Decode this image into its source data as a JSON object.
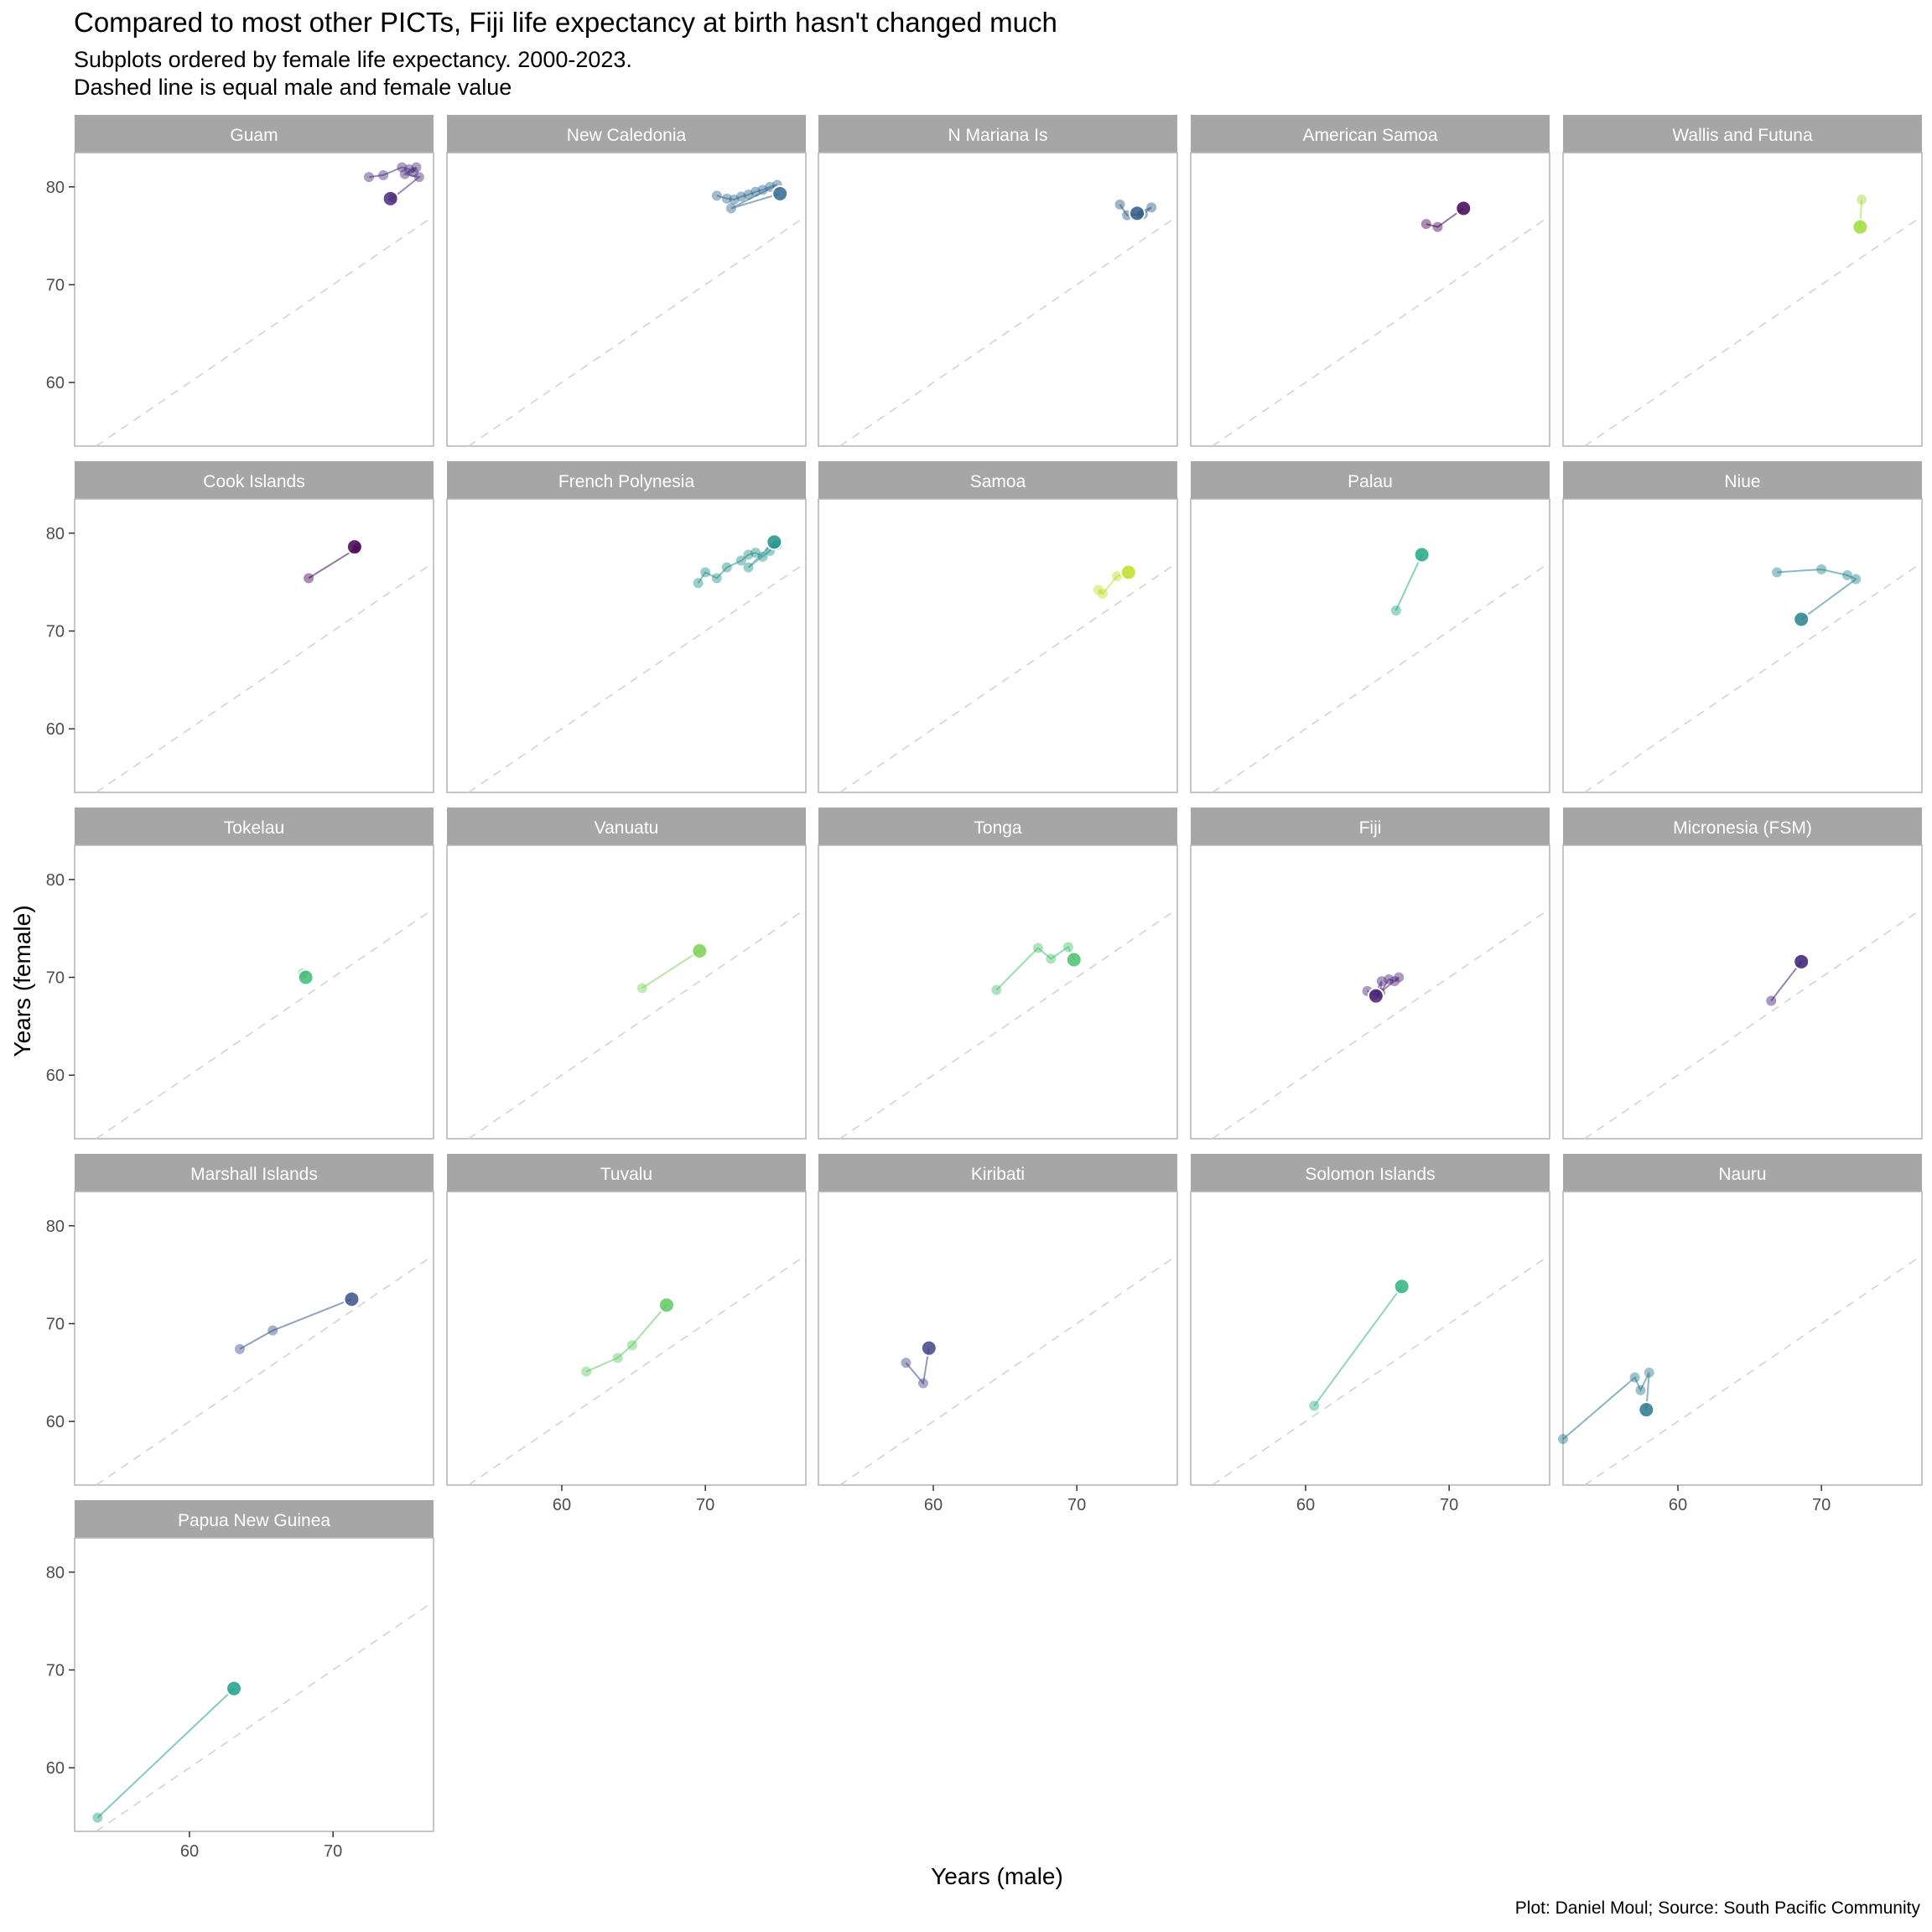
{
  "title": "Compared to most other PICTs, Fiji life expectancy at birth hasn't changed much",
  "subtitle_lines": [
    "Subplots ordered by female life expectancy. 2000-2023.",
    "Dashed line is equal male and female value"
  ],
  "caption": "Plot: Daniel Moul; Source: South Pacific Community",
  "chart_data": {
    "type": "scatter",
    "xlabel": "Years (male)",
    "ylabel": "Years (female)",
    "xlim": [
      52,
      77
    ],
    "ylim": [
      53.5,
      83.5
    ],
    "x_ticks": [
      60,
      70
    ],
    "y_ticks": [
      60,
      70,
      80
    ],
    "grid": false,
    "reference_line": "y = x",
    "facets": [
      {
        "name": "Guam",
        "color": "#472d7b",
        "x": [
          72.5,
          73.5,
          74.8,
          75.3,
          75.6,
          75.8,
          75.0,
          76.0,
          74.2,
          74.0
        ],
        "y": [
          81.0,
          81.2,
          82.0,
          81.8,
          81.5,
          82.0,
          81.3,
          81.0,
          78.9,
          78.8
        ]
      },
      {
        "name": "New Caledonia",
        "color": "#31688e",
        "x": [
          70.8,
          71.5,
          72.0,
          72.5,
          73.0,
          73.5,
          74.0,
          74.5,
          75.0,
          71.8,
          75.2
        ],
        "y": [
          79.1,
          78.8,
          78.7,
          79.0,
          79.2,
          79.5,
          79.7,
          80.0,
          80.2,
          77.8,
          79.3
        ]
      },
      {
        "name": "N Mariana Is",
        "color": "#2c5985",
        "x": [
          73.0,
          73.5,
          74.6,
          75.2,
          74.2
        ],
        "y": [
          78.2,
          77.1,
          77.2,
          77.9,
          77.3
        ]
      },
      {
        "name": "American Samoa",
        "color": "#440154",
        "x": [
          68.4,
          69.2,
          71.0
        ],
        "y": [
          76.2,
          75.9,
          77.8
        ]
      },
      {
        "name": "Wallis and Futuna",
        "color": "#a0da39",
        "x": [
          72.8,
          72.7
        ],
        "y": [
          78.7,
          75.9
        ]
      },
      {
        "name": "Cook Islands",
        "color": "#440154",
        "x": [
          68.3,
          71.7,
          71.5
        ],
        "y": [
          75.4,
          78.5,
          78.6
        ]
      },
      {
        "name": "French Polynesia",
        "color": "#21908c",
        "x": [
          69.5,
          70.0,
          70.8,
          71.5,
          72.5,
          73.0,
          73.5,
          74.0,
          74.5,
          75.0,
          73.0,
          74.8
        ],
        "y": [
          74.9,
          76.0,
          75.4,
          76.5,
          77.2,
          77.8,
          78.0,
          77.6,
          78.2,
          78.8,
          76.5,
          79.1
        ]
      },
      {
        "name": "Samoa",
        "color": "#bddf26",
        "x": [
          71.5,
          71.8,
          72.8,
          73.6
        ],
        "y": [
          74.2,
          73.8,
          75.6,
          76.0
        ]
      },
      {
        "name": "Palau",
        "color": "#22a884",
        "x": [
          66.3,
          68.1
        ],
        "y": [
          72.1,
          77.8
        ]
      },
      {
        "name": "Niue",
        "color": "#26828e",
        "x": [
          66.9,
          70.0,
          71.8,
          72.4,
          68.6
        ],
        "y": [
          76.0,
          76.3,
          75.7,
          75.3,
          71.2
        ]
      },
      {
        "name": "Tokelau",
        "color": "#3dbc74",
        "x": [
          67.9,
          68.1
        ],
        "y": [
          70.4,
          70.0
        ]
      },
      {
        "name": "Vanuatu",
        "color": "#7ad151",
        "x": [
          65.6,
          69.6
        ],
        "y": [
          68.9,
          72.7
        ]
      },
      {
        "name": "Tonga",
        "color": "#4ac16d",
        "x": [
          64.4,
          67.3,
          68.2,
          69.4,
          69.8
        ],
        "y": [
          68.7,
          73.0,
          71.9,
          73.1,
          71.8
        ]
      },
      {
        "name": "Fiji",
        "color": "#482173",
        "x": [
          64.3,
          64.8,
          65.3,
          65.2,
          65.8,
          66.2,
          66.5,
          64.9
        ],
        "y": [
          68.6,
          68.2,
          69.6,
          68.4,
          69.8,
          69.6,
          70.0,
          68.1
        ]
      },
      {
        "name": "Micronesia (FSM)",
        "color": "#3b1c73",
        "x": [
          66.5,
          68.6
        ],
        "y": [
          67.6,
          71.6
        ]
      },
      {
        "name": "Marshall Islands",
        "color": "#3b528b",
        "x": [
          63.5,
          65.8,
          71.3
        ],
        "y": [
          67.4,
          69.3,
          72.5
        ]
      },
      {
        "name": "Tuvalu",
        "color": "#5ec962",
        "x": [
          61.7,
          63.9,
          64.9,
          67.3
        ],
        "y": [
          65.1,
          66.5,
          67.8,
          71.9
        ]
      },
      {
        "name": "Kiribati",
        "color": "#414487",
        "x": [
          58.1,
          59.3,
          59.7
        ],
        "y": [
          66.0,
          63.9,
          67.5
        ]
      },
      {
        "name": "Solomon Islands",
        "color": "#2fb47c",
        "x": [
          60.6,
          66.7
        ],
        "y": [
          61.6,
          73.8
        ]
      },
      {
        "name": "Nauru",
        "color": "#2a788e",
        "x": [
          52.0,
          57.0,
          57.4,
          58.0,
          57.8
        ],
        "y": [
          58.2,
          64.5,
          63.2,
          65.0,
          61.2
        ]
      },
      {
        "name": "Papua New Guinea",
        "color": "#1f9e89",
        "x": [
          53.6,
          63.1
        ],
        "y": [
          54.9,
          68.1
        ]
      }
    ]
  }
}
